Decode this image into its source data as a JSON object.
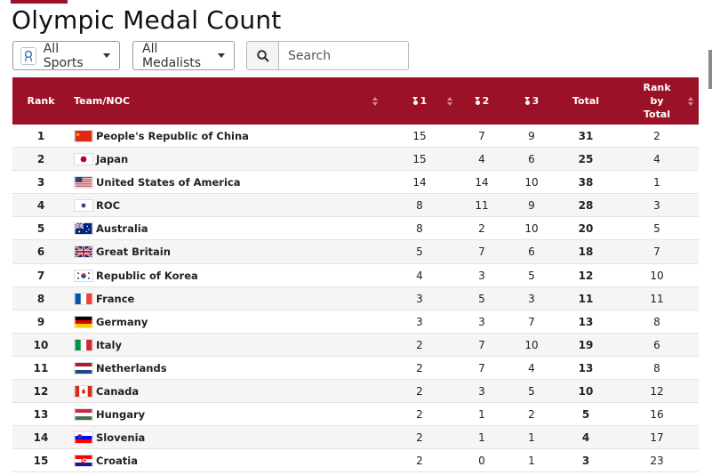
{
  "page": {
    "title": "Olympic Medal Count"
  },
  "filters": {
    "sports_label": "All Sports",
    "medalists_label": "All Medalists",
    "search_placeholder": "Search",
    "search_value": ""
  },
  "columns": {
    "rank": "Rank",
    "team": "Team/NOC",
    "gold": "1",
    "silver": "2",
    "bronze": "3",
    "total": "Total",
    "rank_total_1": "Rank",
    "rank_total_2": "by",
    "rank_total_3": "Total"
  },
  "rows": [
    {
      "rank": "1",
      "team": "People's Republic of China",
      "flag": "china",
      "gold": "15",
      "silver": "7",
      "bronze": "9",
      "total": "31",
      "rank_by_total": "2"
    },
    {
      "rank": "2",
      "team": "Japan",
      "flag": "japan",
      "gold": "15",
      "silver": "4",
      "bronze": "6",
      "total": "25",
      "rank_by_total": "4"
    },
    {
      "rank": "3",
      "team": "United States of America",
      "flag": "usa",
      "gold": "14",
      "silver": "14",
      "bronze": "10",
      "total": "38",
      "rank_by_total": "1"
    },
    {
      "rank": "4",
      "team": "ROC",
      "flag": "roc",
      "gold": "8",
      "silver": "11",
      "bronze": "9",
      "total": "28",
      "rank_by_total": "3"
    },
    {
      "rank": "5",
      "team": "Australia",
      "flag": "australia",
      "gold": "8",
      "silver": "2",
      "bronze": "10",
      "total": "20",
      "rank_by_total": "5"
    },
    {
      "rank": "6",
      "team": "Great Britain",
      "flag": "uk",
      "gold": "5",
      "silver": "7",
      "bronze": "6",
      "total": "18",
      "rank_by_total": "7"
    },
    {
      "rank": "7",
      "team": "Republic of Korea",
      "flag": "korea",
      "gold": "4",
      "silver": "3",
      "bronze": "5",
      "total": "12",
      "rank_by_total": "10"
    },
    {
      "rank": "8",
      "team": "France",
      "flag": "france",
      "gold": "3",
      "silver": "5",
      "bronze": "3",
      "total": "11",
      "rank_by_total": "11"
    },
    {
      "rank": "9",
      "team": "Germany",
      "flag": "germany",
      "gold": "3",
      "silver": "3",
      "bronze": "7",
      "total": "13",
      "rank_by_total": "8"
    },
    {
      "rank": "10",
      "team": "Italy",
      "flag": "italy",
      "gold": "2",
      "silver": "7",
      "bronze": "10",
      "total": "19",
      "rank_by_total": "6"
    },
    {
      "rank": "11",
      "team": "Netherlands",
      "flag": "netherlands",
      "gold": "2",
      "silver": "7",
      "bronze": "4",
      "total": "13",
      "rank_by_total": "8"
    },
    {
      "rank": "12",
      "team": "Canada",
      "flag": "canada",
      "gold": "2",
      "silver": "3",
      "bronze": "5",
      "total": "10",
      "rank_by_total": "12"
    },
    {
      "rank": "13",
      "team": "Hungary",
      "flag": "hungary",
      "gold": "2",
      "silver": "1",
      "bronze": "2",
      "total": "5",
      "rank_by_total": "16"
    },
    {
      "rank": "14",
      "team": "Slovenia",
      "flag": "slovenia",
      "gold": "2",
      "silver": "1",
      "bronze": "1",
      "total": "4",
      "rank_by_total": "17"
    },
    {
      "rank": "15",
      "team": "Croatia",
      "flag": "croatia",
      "gold": "2",
      "silver": "0",
      "bronze": "1",
      "total": "3",
      "rank_by_total": "23"
    }
  ],
  "colors": {
    "header_bg": "#9b1127",
    "accent": "#9b1127"
  }
}
